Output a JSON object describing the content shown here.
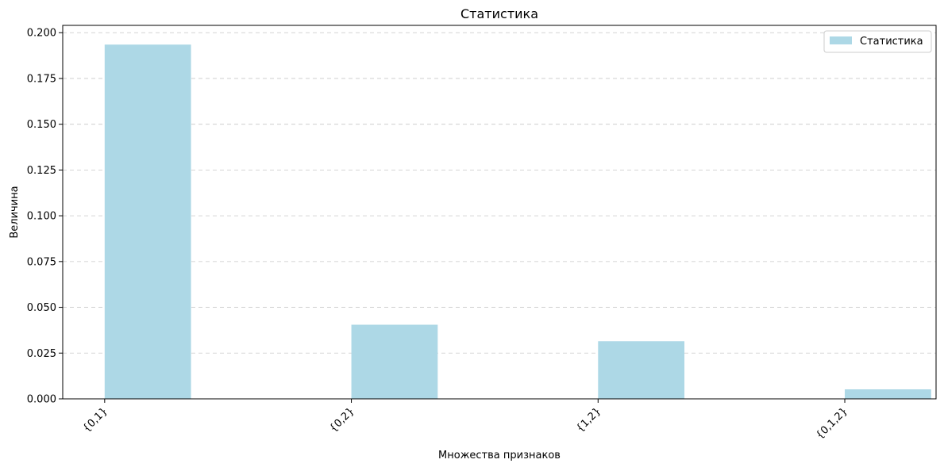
{
  "chart_data": {
    "type": "bar",
    "title": "Статистика",
    "xlabel": "Множества признаков",
    "ylabel": "Величина",
    "categories": [
      "{0,1}",
      "{0,2}",
      "{1,2}",
      "{0,1,2}"
    ],
    "series": [
      {
        "name": "Статистика",
        "values": [
          0.1935,
          0.0405,
          0.0315,
          0.0052
        ],
        "color": "#add8e6"
      }
    ],
    "ylim": [
      0,
      0.204
    ],
    "yticks": [
      0.0,
      0.025,
      0.05,
      0.075,
      0.1,
      0.125,
      0.15,
      0.175,
      0.2
    ],
    "ytick_labels": [
      "0.000",
      "0.025",
      "0.050",
      "0.075",
      "0.100",
      "0.125",
      "0.150",
      "0.175",
      "0.200"
    ],
    "grid": "y-dashed",
    "legend_position": "top-right",
    "xtick_rotation": "45deg"
  }
}
